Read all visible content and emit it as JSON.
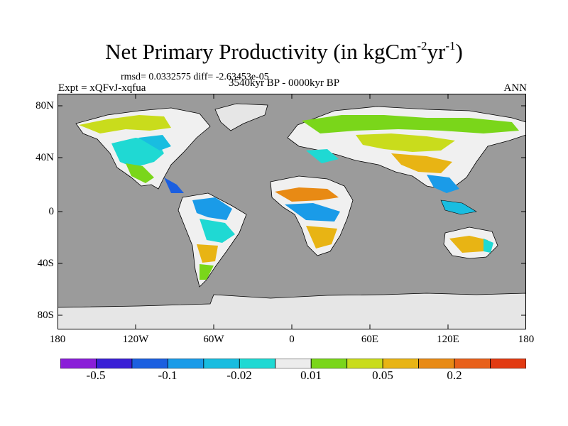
{
  "title": {
    "main": "Net Primary Productivity (in kgCm",
    "exp1": "-2",
    "mid": "yr",
    "exp2": "-1",
    "end": ")"
  },
  "subtitle": {
    "stats": "rmsd= 0.0332575 diff= -2.63453e-05",
    "experiment": "Expt = xQFvJ-xqfua",
    "period": "3540kyr BP - 0000kyr BP",
    "season": "ANN"
  },
  "axes": {
    "lat_ticks": [
      "80N",
      "40N",
      "0",
      "40S",
      "80S"
    ],
    "lon_ticks": [
      "180",
      "120W",
      "60W",
      "0",
      "60E",
      "120E",
      "180"
    ]
  },
  "colorbar": {
    "colors": [
      "#8a1ed8",
      "#3a1fd6",
      "#1b5fe0",
      "#1a9be8",
      "#19bde0",
      "#1fd9d3",
      "#ececec",
      "#7ad61a",
      "#c9dc1c",
      "#e8b414",
      "#e88a14",
      "#e8601a",
      "#e23a12"
    ],
    "labels": [
      "-0.5",
      "-0.1",
      "-0.02",
      "0.01",
      "0.05",
      "0.2"
    ]
  },
  "map": {
    "ocean_color": "#9b9b9b",
    "ice_color": "#e6e6e6"
  }
}
